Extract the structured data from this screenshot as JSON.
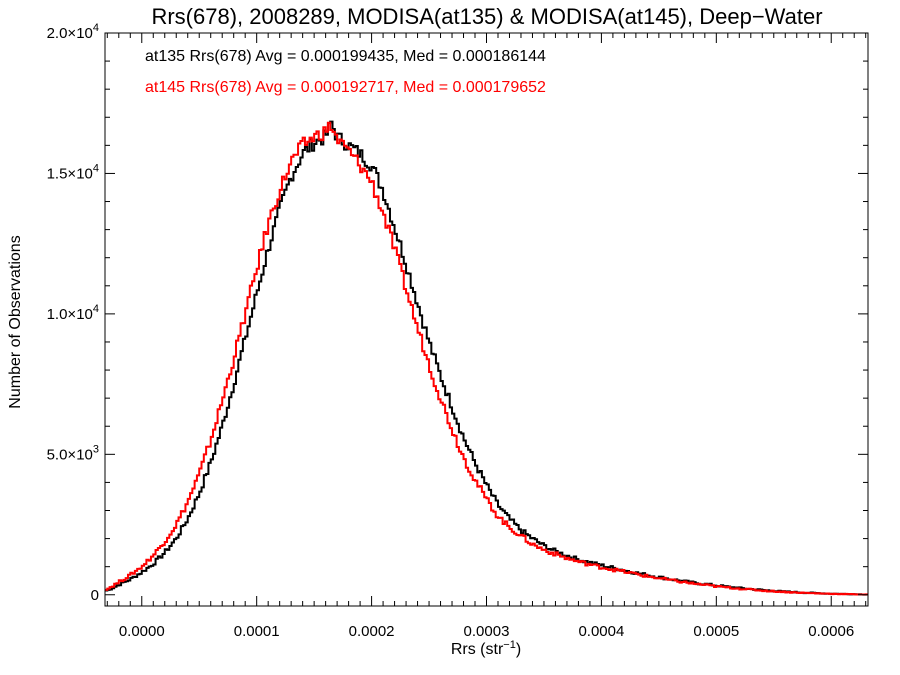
{
  "chart_data": {
    "type": "line",
    "title": "Rrs(678), 2008289, MODISA(at135) & MODISA(at145), Deep−Water",
    "xlabel": "Rrs (str",
    "xlabel_sup": "−1",
    "xlabel_end": ")",
    "ylabel": "Number of Observations",
    "xlim": [
      -3.2e-05,
      0.000632
    ],
    "ylim": [
      -400,
      20000
    ],
    "grid": false,
    "x_ticks": [
      "0.0000",
      "0.0001",
      "0.0002",
      "0.0003",
      "0.0004",
      "0.0005",
      "0.0006"
    ],
    "x_tick_values": [
      0,
      0.0001,
      0.0002,
      0.0003,
      0.0004,
      0.0005,
      0.0006
    ],
    "y_ticks": [
      {
        "value": 0,
        "mantissa": "0",
        "exp": ""
      },
      {
        "value": 5000,
        "mantissa": "5.0×10",
        "exp": "3"
      },
      {
        "value": 10000,
        "mantissa": "1.0×10",
        "exp": "4"
      },
      {
        "value": 15000,
        "mantissa": "1.5×10",
        "exp": "4"
      },
      {
        "value": 20000,
        "mantissa": "2.0×10",
        "exp": "4"
      }
    ],
    "annotations": [
      {
        "text": "at135 Rrs(678) Avg = 0.000199435, Med = 0.000186144",
        "color": "#000000"
      },
      {
        "text": "at145 Rrs(678) Avg = 0.000192717, Med = 0.000179652",
        "color": "#ff0000"
      }
    ],
    "series": [
      {
        "color": "#000000",
        "x": [
          -3e-05,
          -2e-05,
          -1e-05,
          0.0,
          1e-05,
          2e-05,
          3e-05,
          4e-05,
          5e-05,
          6e-05,
          7e-05,
          8e-05,
          9e-05,
          0.0001,
          0.00011,
          0.00012,
          0.00013,
          0.00014,
          0.00015,
          0.00016,
          0.000165,
          0.00017,
          0.00018,
          0.00019,
          0.0002,
          0.00021,
          0.00022,
          0.00023,
          0.00024,
          0.00025,
          0.00026,
          0.00027,
          0.00028,
          0.00029,
          0.0003,
          0.00031,
          0.00032,
          0.00033,
          0.00034,
          0.00035,
          0.00036,
          0.00037,
          0.00038,
          0.00039,
          0.0004,
          0.00042,
          0.00044,
          0.00046,
          0.00048,
          0.0005,
          0.00052,
          0.00054,
          0.00056,
          0.00058,
          0.0006,
          0.00062,
          0.00063
        ],
        "y": [
          150,
          350,
          550,
          800,
          1100,
          1500,
          2000,
          2700,
          3600,
          4700,
          6000,
          7500,
          9100,
          10700,
          12300,
          13700,
          14900,
          15700,
          16100,
          16300,
          16800,
          16300,
          16000,
          15700,
          15300,
          14400,
          13100,
          11800,
          10400,
          9000,
          7800,
          6700,
          5600,
          4700,
          3900,
          3200,
          2700,
          2300,
          2000,
          1750,
          1550,
          1400,
          1250,
          1150,
          1050,
          870,
          700,
          560,
          430,
          330,
          240,
          170,
          110,
          70,
          40,
          20,
          10
        ]
      },
      {
        "color": "#ff0000",
        "x": [
          -3e-05,
          -2e-05,
          -1e-05,
          0.0,
          1e-05,
          2e-05,
          3e-05,
          4e-05,
          5e-05,
          6e-05,
          7e-05,
          8e-05,
          9e-05,
          0.0001,
          0.00011,
          0.00012,
          0.00013,
          0.00014,
          0.00015,
          0.00016,
          0.000165,
          0.00017,
          0.00018,
          0.00019,
          0.0002,
          0.00021,
          0.00022,
          0.00023,
          0.00024,
          0.00025,
          0.00026,
          0.00027,
          0.00028,
          0.00029,
          0.0003,
          0.00031,
          0.00032,
          0.00033,
          0.00034,
          0.00035,
          0.00036,
          0.00037,
          0.00038,
          0.00039,
          0.0004,
          0.00042,
          0.00044,
          0.00046,
          0.00048,
          0.0005,
          0.00052,
          0.00054,
          0.00056,
          0.00058,
          0.0006,
          0.00062,
          0.00063
        ],
        "y": [
          200,
          450,
          700,
          1000,
          1400,
          1900,
          2500,
          3300,
          4300,
          5500,
          6900,
          8400,
          10000,
          11600,
          13200,
          14400,
          15400,
          16000,
          16300,
          16500,
          16700,
          16200,
          15800,
          15300,
          14700,
          13600,
          12300,
          10900,
          9500,
          8200,
          7000,
          5900,
          4900,
          4100,
          3400,
          2800,
          2400,
          2100,
          1800,
          1600,
          1450,
          1300,
          1180,
          1080,
          980,
          820,
          660,
          520,
          400,
          300,
          220,
          150,
          100,
          60,
          35,
          18,
          10
        ]
      }
    ]
  }
}
